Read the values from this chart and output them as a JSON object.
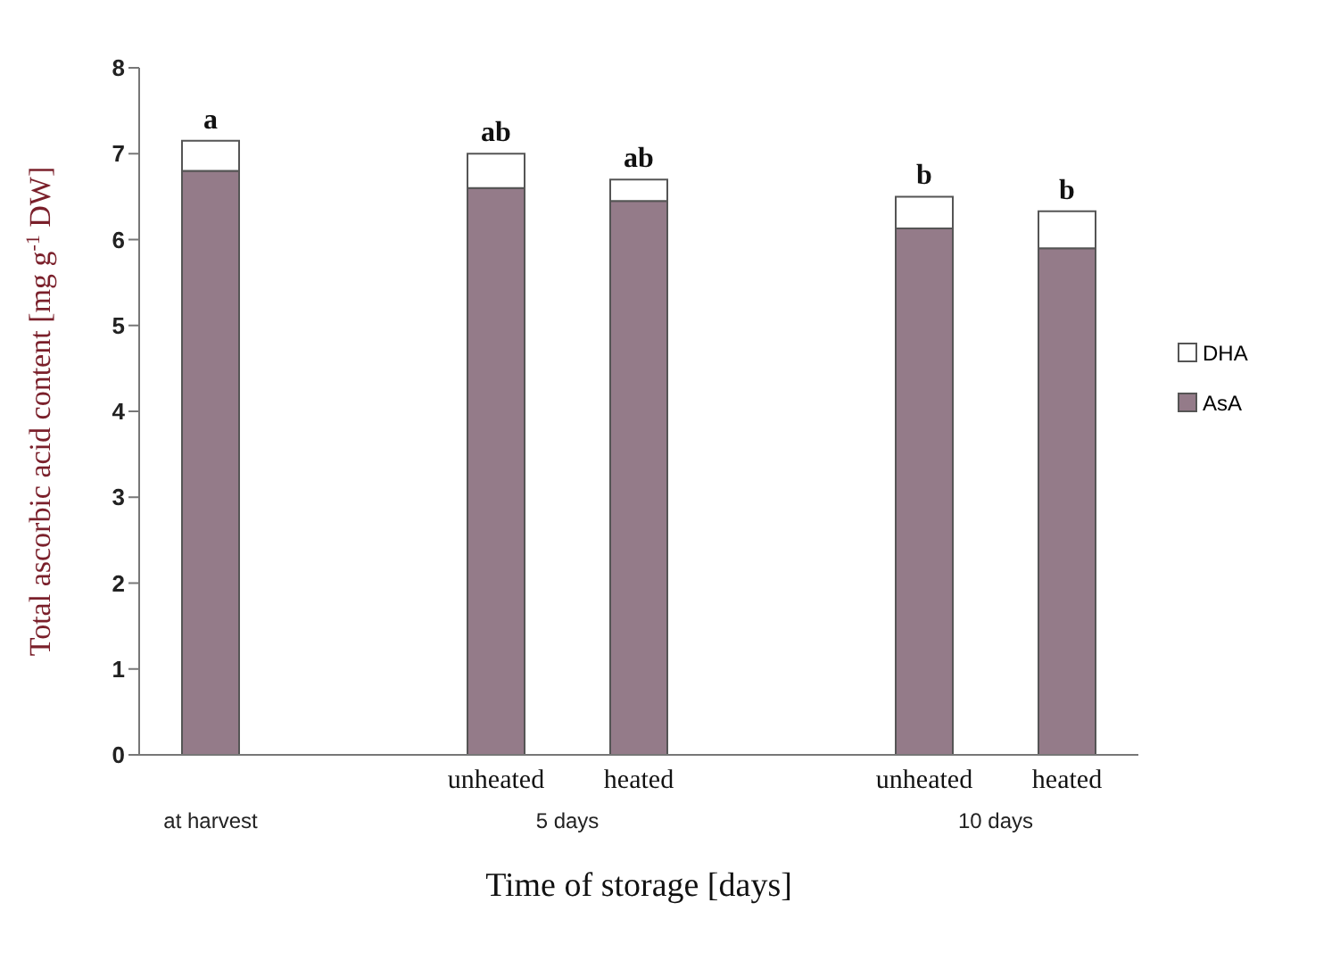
{
  "chart_data": {
    "type": "bar",
    "stacked": true,
    "xlabel": "Time of storage [days]",
    "ylabel": "Total ascorbic acid content  [mg g$^{-1}$ DW]",
    "categories": [
      null,
      null,
      "unheated",
      "heated",
      null,
      "unheated",
      "heated"
    ],
    "series": [
      {
        "name": "AsA",
        "color": "#947b89",
        "values": [
          6.8,
          null,
          6.6,
          6.45,
          null,
          6.13,
          5.9
        ]
      },
      {
        "name": "DHA",
        "color": "#ffffff",
        "values": [
          0.35,
          null,
          0.4,
          0.25,
          null,
          0.37,
          0.43
        ],
        "value_labels": [
          "a",
          null,
          "ab",
          "ab",
          null,
          "b",
          "b"
        ]
      }
    ],
    "annotations": [
      "at harvest",
      "5 days",
      "10 days"
    ],
    "ylim": [
      0,
      8
    ],
    "yticks": [
      0,
      1,
      2,
      3,
      4,
      5,
      6,
      7,
      8
    ],
    "legend": "right"
  }
}
